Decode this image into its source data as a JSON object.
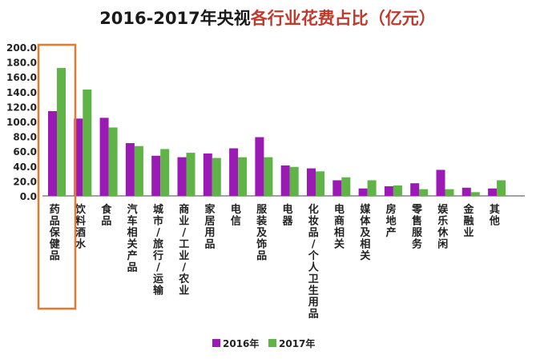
{
  "title": {
    "part1": "2016-2017年央视",
    "part2": "各行业花费占比（亿元）",
    "color1": "#1a1a1a",
    "color2": "#c0392b"
  },
  "chart_data": {
    "type": "bar",
    "categories": [
      "药品保健品",
      "饮料酒水",
      "食品",
      "汽车相关产品",
      "城市/旅行/运输",
      "商业/工业/农业",
      "家居用品",
      "电信",
      "服装及饰品",
      "电器",
      "化妆品/个人卫生用品",
      "电商相关",
      "媒体及相关",
      "房地产",
      "零售服务",
      "娱乐休闲",
      "金融业",
      "其他"
    ],
    "series": [
      {
        "name": "2016年",
        "color": "#9b19b5",
        "values": [
          114,
          104,
          105,
          71,
          54,
          52,
          57,
          64,
          79,
          41,
          37,
          21,
          10,
          13,
          17,
          35,
          11,
          10
        ]
      },
      {
        "name": "2017年",
        "color": "#5fb347",
        "values": [
          172,
          143,
          92,
          67,
          63,
          58,
          51,
          52,
          52,
          39,
          33,
          25,
          21,
          14,
          9,
          9,
          5,
          21
        ]
      }
    ],
    "yticks": [
      "200.0",
      "180.0",
      "160.0",
      "140.0",
      "120.0",
      "100.0",
      "80.0",
      "60.0",
      "40.0",
      "20.0",
      "0.0"
    ],
    "ylim": [
      0,
      200
    ],
    "legend_position": "bottom",
    "highlight_category": "药品保健品",
    "highlight_color": "#e8782b"
  }
}
